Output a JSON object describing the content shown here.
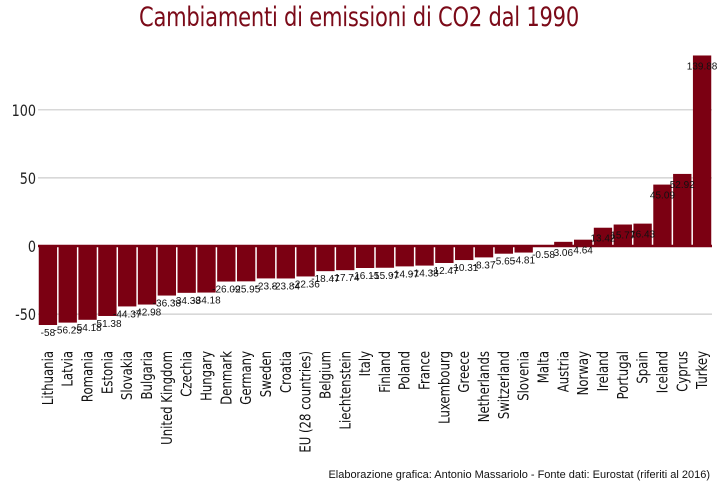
{
  "chart_data": {
    "type": "bar",
    "title": "Cambiamenti di emissioni di CO2 dal 1990",
    "xlabel": "",
    "ylabel": "",
    "ylim": [
      -60,
      140
    ],
    "yticks": [
      -50,
      0,
      50,
      100
    ],
    "grid": true,
    "bar_color": "#7b0012",
    "title_color": "#7b0a18",
    "categories": [
      "Lithuania",
      "Latvia",
      "Romania",
      "Estonia",
      "Slovakia",
      "Bulgaria",
      "United Kingdom",
      "Czechia",
      "Hungary",
      "Denmark",
      "Germany",
      "Sweden",
      "Croatia",
      "EU (28 countries)",
      "Belgium",
      "Liechtenstein",
      "Italy",
      "Finland",
      "Poland",
      "France",
      "Luxembourg",
      "Greece",
      "Netherlands",
      "Switzerland",
      "Slovenia",
      "Malta",
      "Austria",
      "Norway",
      "Ireland",
      "Portugal",
      "Spain",
      "Iceland",
      "Cyprus",
      "Turkey"
    ],
    "values": [
      -58,
      -56.25,
      -54.18,
      -51.38,
      -44.37,
      -42.98,
      -36.38,
      -34.38,
      -34.18,
      -26.09,
      -25.95,
      -23.8,
      -23.84,
      -22.36,
      -18.47,
      -17.74,
      -16.15,
      -15.97,
      -14.97,
      -14.38,
      -12.47,
      -10.31,
      -8.37,
      -5.65,
      -4.81,
      -0.58,
      3.06,
      4.64,
      13.42,
      15.77,
      16.43,
      45.09,
      52.92,
      139.88
    ],
    "data_labels": [
      "-58",
      "-56.25",
      "-54.18",
      "-51.38",
      "-44.37",
      "-42.98",
      "-36.38",
      "-34.38",
      "-34.18",
      "-26.09",
      "-25.95",
      "-23.8",
      "-23.84",
      "-22.36",
      "-18.47",
      "-17.74",
      "-16.15",
      "-15.97",
      "-14.97",
      "-14.38",
      "-12.47",
      "-10.31",
      "-8.37",
      "-5.65",
      "-4.81",
      "-0.58",
      "3.06",
      "4.64",
      "13.42",
      "15.77",
      "16.43",
      "45.09",
      "52.92",
      "139.88"
    ]
  },
  "credit": "Elaborazione grafica: Antonio Massariolo - Fonte dati: Eurostat (riferiti al 2016)"
}
